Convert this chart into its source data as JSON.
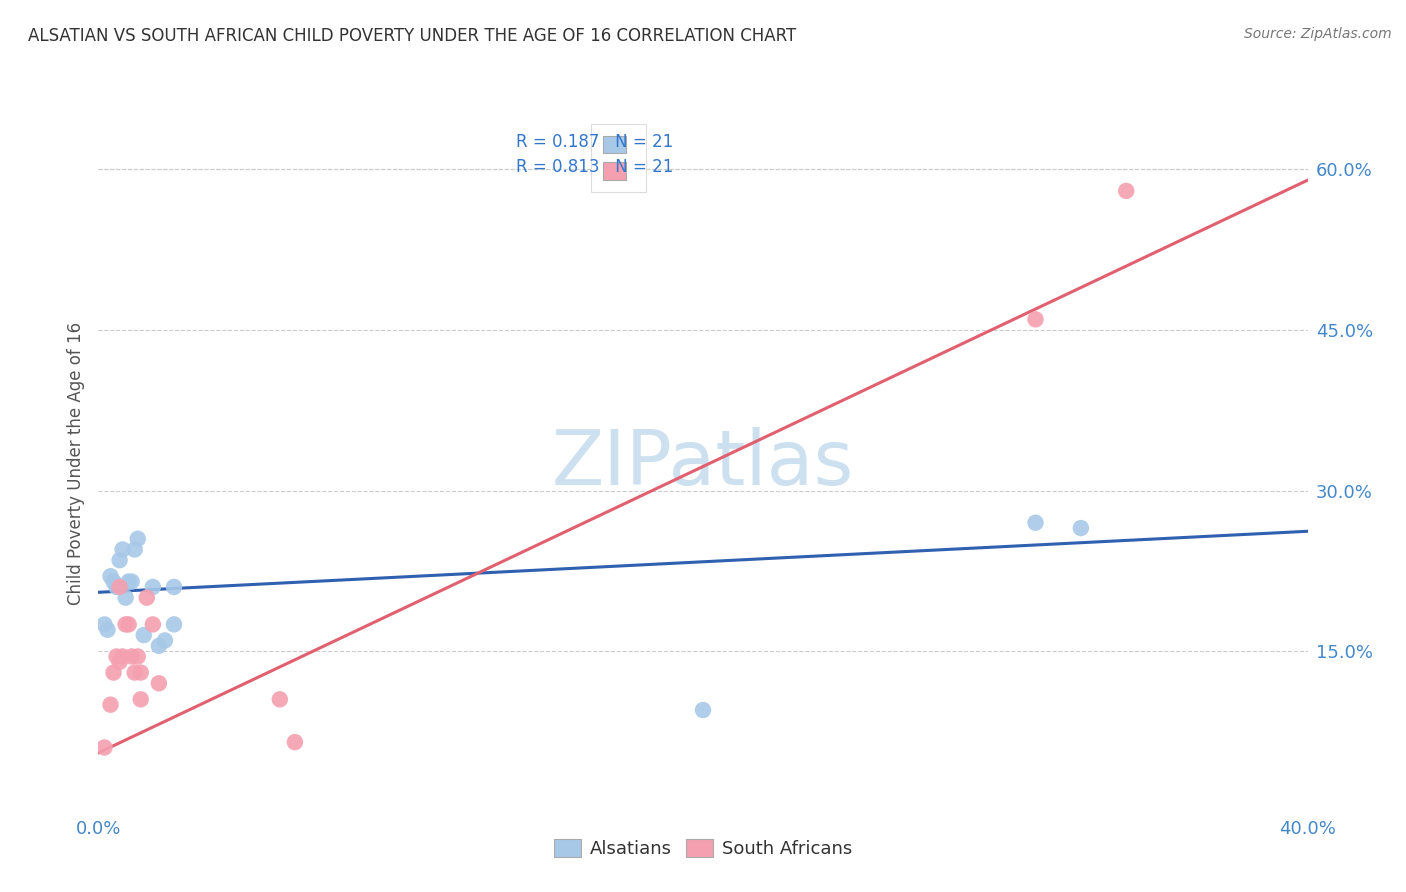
{
  "title": "ALSATIAN VS SOUTH AFRICAN CHILD POVERTY UNDER THE AGE OF 16 CORRELATION CHART",
  "source": "Source: ZipAtlas.com",
  "ylabel": "Child Poverty Under the Age of 16",
  "xlim": [
    0.0,
    0.4
  ],
  "ylim": [
    0.0,
    0.65
  ],
  "xticks": [
    0.0,
    0.05,
    0.1,
    0.15,
    0.2,
    0.25,
    0.3,
    0.35,
    0.4
  ],
  "xtick_labels": [
    "0.0%",
    "",
    "",
    "",
    "",
    "",
    "",
    "",
    "40.0%"
  ],
  "yticks": [
    0.15,
    0.3,
    0.45,
    0.6
  ],
  "ytick_labels": [
    "15.0%",
    "30.0%",
    "45.0%",
    "60.0%"
  ],
  "alsatian_color": "#a8c8e8",
  "sa_color": "#f4a0b0",
  "line_blue": "#3060b0",
  "line_pink": "#e06070",
  "watermark": "ZIPatlas",
  "watermark_color": "#cce0f0",
  "legend_r1": "R = 0.187",
  "legend_n1": "N = 21",
  "legend_r2": "R = 0.813",
  "legend_n2": "N = 21",
  "alsatian_x": [
    0.002,
    0.003,
    0.004,
    0.005,
    0.006,
    0.007,
    0.008,
    0.009,
    0.01,
    0.011,
    0.012,
    0.013,
    0.015,
    0.018,
    0.02,
    0.022,
    0.025,
    0.025,
    0.2,
    0.31,
    0.325
  ],
  "alsatian_y": [
    0.175,
    0.17,
    0.22,
    0.215,
    0.21,
    0.235,
    0.245,
    0.2,
    0.215,
    0.215,
    0.245,
    0.255,
    0.165,
    0.21,
    0.155,
    0.16,
    0.175,
    0.21,
    0.095,
    0.27,
    0.265
  ],
  "sa_x": [
    0.002,
    0.004,
    0.005,
    0.006,
    0.007,
    0.007,
    0.008,
    0.009,
    0.01,
    0.011,
    0.012,
    0.013,
    0.014,
    0.014,
    0.016,
    0.018,
    0.02,
    0.06,
    0.065,
    0.31,
    0.34
  ],
  "sa_y": [
    0.06,
    0.1,
    0.13,
    0.145,
    0.14,
    0.21,
    0.145,
    0.175,
    0.175,
    0.145,
    0.13,
    0.145,
    0.13,
    0.105,
    0.2,
    0.175,
    0.12,
    0.105,
    0.065,
    0.46,
    0.58
  ],
  "blue_line_x0": 0.0,
  "blue_line_y0": 0.205,
  "blue_line_x1": 0.4,
  "blue_line_y1": 0.262,
  "pink_line_x0": 0.0,
  "pink_line_y0": 0.055,
  "pink_line_x1": 0.4,
  "pink_line_y1": 0.59,
  "background_color": "#ffffff",
  "grid_color": "#cccccc",
  "title_color": "#333333",
  "label_color": "#555555",
  "legend_text_color": "#333333",
  "legend_number_color": "#3377cc"
}
